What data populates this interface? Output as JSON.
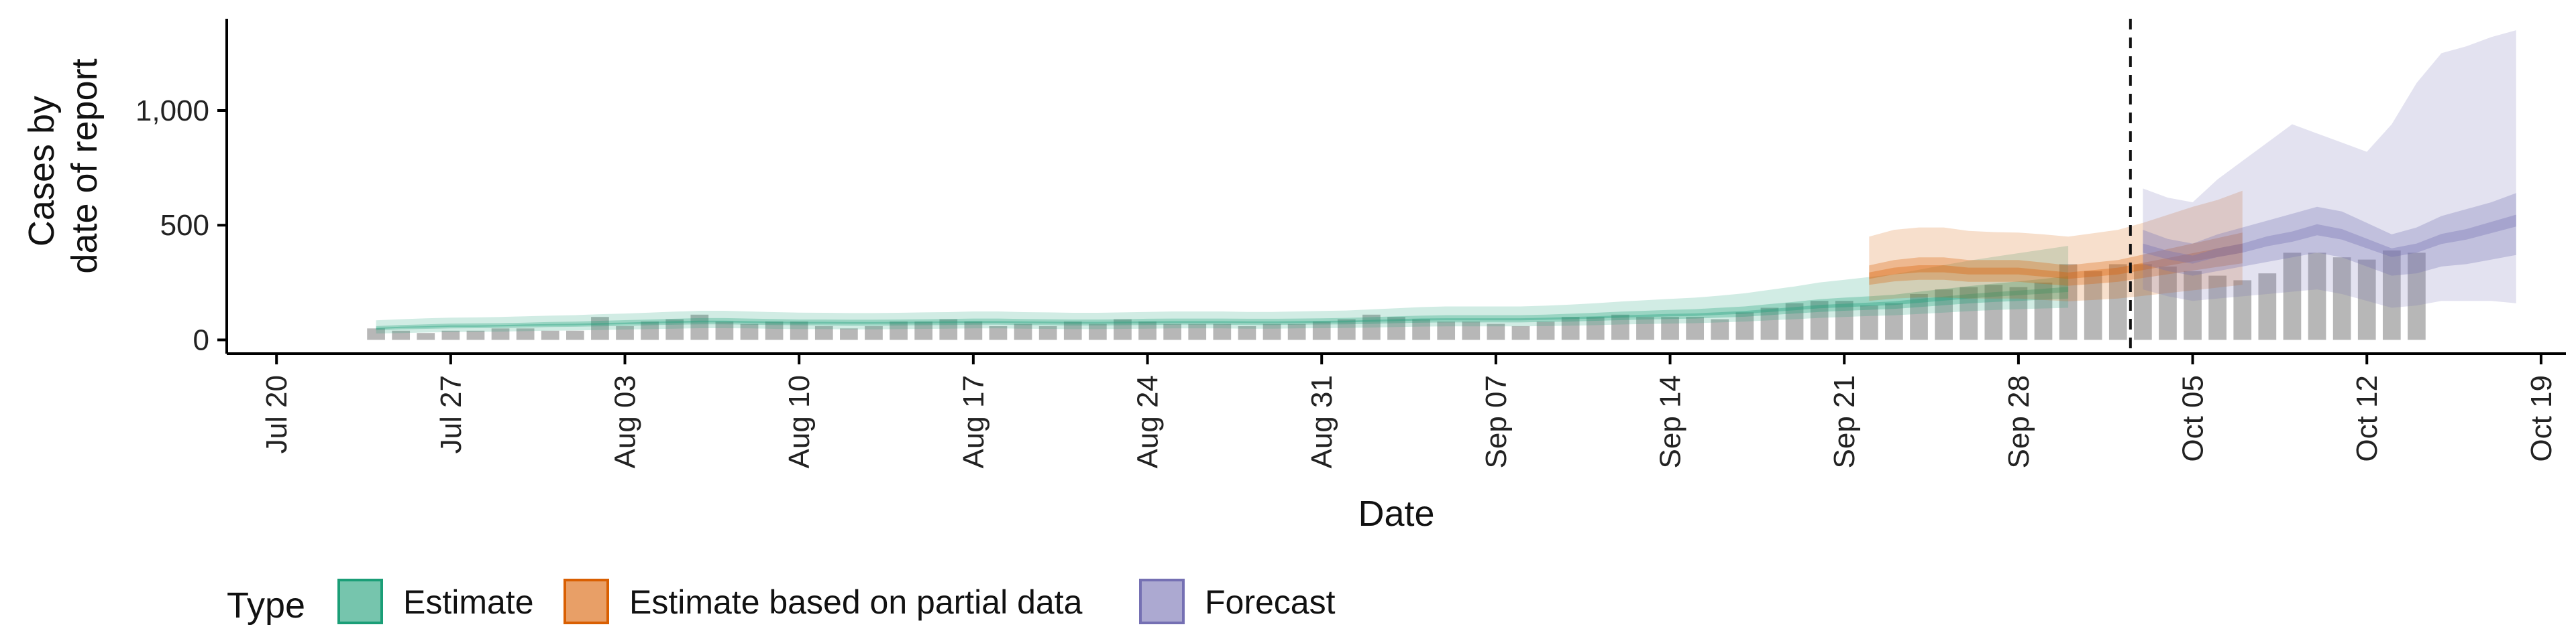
{
  "chart_data": {
    "type": "bar",
    "xlabel": "Date",
    "ylabel_lines": [
      "Cases by",
      "date of report"
    ],
    "x_range": [
      "2020-07-18",
      "2020-10-20"
    ],
    "ylim": [
      -60,
      1400
    ],
    "y_ticks": [
      0,
      500,
      1000
    ],
    "y_tick_labels": [
      "0",
      "500",
      "1,000"
    ],
    "x_ticks": [
      "2020-07-20",
      "2020-07-27",
      "2020-08-03",
      "2020-08-10",
      "2020-08-17",
      "2020-08-24",
      "2020-08-31",
      "2020-09-07",
      "2020-09-14",
      "2020-09-21",
      "2020-09-28",
      "2020-10-05",
      "2020-10-12",
      "2020-10-19"
    ],
    "x_tick_labels": [
      "Jul 20",
      "Jul 27",
      "Aug 03",
      "Aug 10",
      "Aug 17",
      "Aug 24",
      "Aug 31",
      "Sep 07",
      "Sep 14",
      "Sep 21",
      "Sep 28",
      "Oct 05",
      "Oct 12",
      "Oct 19"
    ],
    "grid": false,
    "reported_cases": {
      "start_date": "2020-07-24",
      "values": [
        50,
        40,
        30,
        40,
        40,
        50,
        50,
        40,
        40,
        100,
        60,
        80,
        90,
        110,
        80,
        70,
        80,
        80,
        60,
        50,
        60,
        80,
        80,
        90,
        80,
        60,
        70,
        60,
        80,
        70,
        90,
        80,
        70,
        70,
        70,
        60,
        70,
        70,
        80,
        90,
        110,
        100,
        90,
        80,
        80,
        70,
        60,
        80,
        100,
        100,
        110,
        100,
        100,
        100,
        90,
        120,
        140,
        160,
        170,
        170,
        150,
        160,
        200,
        220,
        230,
        240,
        230,
        250,
        330,
        300,
        330,
        330,
        320,
        300,
        280,
        260,
        290,
        380,
        380,
        360,
        350,
        390,
        380
      ],
      "color": "#999999"
    },
    "series": [
      {
        "name": "Estimate",
        "color": "#1b9e77",
        "start_date": "2020-07-24",
        "median": [
          50,
          55,
          57,
          60,
          60,
          62,
          64,
          66,
          67,
          70,
          72,
          75,
          78,
          80,
          80,
          78,
          76,
          75,
          75,
          74,
          74,
          75,
          76,
          77,
          78,
          78,
          77,
          76,
          75,
          75,
          76,
          77,
          78,
          78,
          78,
          77,
          77,
          78,
          79,
          80,
          83,
          86,
          89,
          90,
          90,
          90,
          90,
          92,
          95,
          98,
          102,
          105,
          108,
          110,
          115,
          120,
          128,
          136,
          145,
          150,
          155,
          160,
          170,
          180,
          190,
          198,
          205,
          212,
          220
        ],
        "lower50": [
          42,
          46,
          48,
          50,
          51,
          52,
          54,
          56,
          57,
          59,
          61,
          64,
          66,
          68,
          68,
          66,
          65,
          64,
          63,
          62,
          62,
          63,
          64,
          65,
          66,
          66,
          65,
          64,
          63,
          63,
          64,
          65,
          66,
          66,
          66,
          65,
          65,
          66,
          67,
          68,
          70,
          73,
          75,
          76,
          76,
          76,
          76,
          78,
          80,
          83,
          86,
          89,
          91,
          93,
          97,
          101,
          108,
          115,
          122,
          127,
          131,
          135,
          143,
          151,
          159,
          165,
          170,
          175,
          180
        ],
        "upper50": [
          60,
          65,
          68,
          71,
          72,
          73,
          75,
          78,
          80,
          83,
          86,
          89,
          92,
          95,
          95,
          93,
          91,
          89,
          89,
          88,
          88,
          89,
          90,
          91,
          93,
          93,
          91,
          90,
          89,
          89,
          90,
          92,
          93,
          93,
          93,
          92,
          92,
          93,
          94,
          96,
          99,
          103,
          106,
          108,
          108,
          108,
          108,
          110,
          114,
          118,
          123,
          127,
          131,
          134,
          140,
          146,
          156,
          166,
          177,
          184,
          190,
          197,
          210,
          222,
          234,
          245,
          255,
          266,
          278
        ],
        "lower90": [
          28,
          30,
          32,
          34,
          35,
          36,
          38,
          40,
          41,
          43,
          45,
          47,
          49,
          51,
          51,
          50,
          48,
          47,
          47,
          46,
          46,
          47,
          48,
          49,
          50,
          50,
          49,
          48,
          47,
          47,
          48,
          49,
          50,
          50,
          50,
          49,
          49,
          50,
          51,
          52,
          54,
          56,
          58,
          59,
          59,
          59,
          59,
          60,
          62,
          64,
          67,
          69,
          71,
          73,
          76,
          80,
          85,
          90,
          96,
          100,
          104,
          107,
          113,
          119,
          125,
          130,
          134,
          137,
          140
        ],
        "upper90": [
          85,
          90,
          94,
          97,
          98,
          100,
          103,
          106,
          108,
          112,
          115,
          119,
          123,
          127,
          127,
          124,
          121,
          119,
          118,
          117,
          117,
          118,
          120,
          121,
          124,
          124,
          121,
          120,
          118,
          118,
          120,
          122,
          124,
          124,
          124,
          122,
          122,
          124,
          126,
          128,
          133,
          138,
          143,
          146,
          146,
          146,
          146,
          149,
          154,
          160,
          167,
          173,
          179,
          184,
          193,
          203,
          218,
          233,
          250,
          262,
          274,
          286,
          306,
          326,
          345,
          362,
          378,
          394,
          410
        ]
      },
      {
        "name": "Estimate based on partial data",
        "color": "#d95f02",
        "start_date": "2020-09-22",
        "median": [
          280,
          300,
          310,
          310,
          300,
          300,
          300,
          290,
          280,
          290,
          300,
          320,
          340,
          360,
          380,
          400
        ],
        "lower50": [
          240,
          255,
          262,
          262,
          253,
          253,
          253,
          244,
          236,
          244,
          253,
          270,
          286,
          302,
          318,
          334
        ],
        "upper50": [
          325,
          348,
          360,
          360,
          348,
          348,
          348,
          337,
          325,
          337,
          348,
          372,
          396,
          420,
          444,
          468
        ],
        "lower90": [
          170,
          180,
          185,
          185,
          180,
          180,
          180,
          174,
          168,
          174,
          180,
          192,
          204,
          216,
          228,
          240
        ],
        "upper90": [
          450,
          480,
          490,
          490,
          475,
          470,
          468,
          460,
          450,
          465,
          480,
          510,
          545,
          580,
          610,
          650
        ]
      },
      {
        "name": "Forecast",
        "color": "#7570b3",
        "start_date": "2020-10-03",
        "median": [
          400,
          370,
          350,
          380,
          400,
          430,
          450,
          480,
          460,
          420,
          380,
          400,
          440,
          460,
          490,
          520
        ],
        "lower50": [
          330,
          300,
          280,
          300,
          320,
          340,
          360,
          380,
          360,
          320,
          280,
          290,
          320,
          330,
          350,
          370
        ],
        "upper50": [
          480,
          440,
          420,
          460,
          490,
          520,
          550,
          580,
          560,
          510,
          460,
          490,
          540,
          570,
          600,
          640
        ],
        "lower90": [
          220,
          190,
          170,
          180,
          190,
          200,
          210,
          220,
          200,
          170,
          140,
          150,
          170,
          170,
          170,
          160
        ],
        "upper90": [
          660,
          620,
          600,
          700,
          780,
          860,
          940,
          900,
          860,
          820,
          940,
          1120,
          1250,
          1280,
          1320,
          1350
        ]
      }
    ],
    "forecast_cutoff": "2020-10-02",
    "legend": {
      "title": "Type",
      "placement": "bottom",
      "entries": [
        "Estimate",
        "Estimate based on partial data",
        "Forecast"
      ]
    }
  }
}
